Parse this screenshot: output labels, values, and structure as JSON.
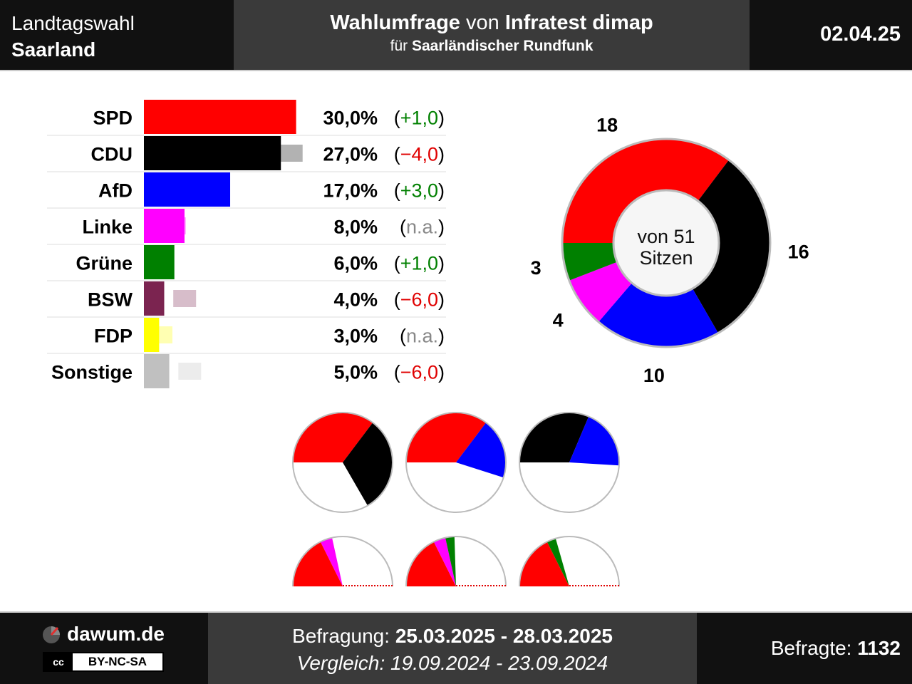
{
  "header": {
    "election_line1": "Landtagswahl",
    "election_line2": "Saarland",
    "title_part1": "Wahlumfrage",
    "title_part2": "von",
    "title_part3": "Infratest dimap",
    "subtitle_part1": "für",
    "subtitle_part2": "Saarländischer Rundfunk",
    "date": "02.04.25"
  },
  "chart_data": [
    {
      "type": "bar",
      "categories": [
        "SPD",
        "CDU",
        "AfD",
        "Linke",
        "Grüne",
        "BSW",
        "FDP",
        "Sonstige"
      ],
      "series": [
        {
          "values": [
            30.0,
            27.0,
            17.0,
            8.0,
            6.0,
            4.0,
            3.0,
            5.0
          ]
        },
        {
          "values": [
            29.0,
            31.0,
            14.0,
            null,
            5.0,
            10.0,
            null,
            11.0
          ]
        }
      ],
      "value_labels": [
        "30,0%",
        "27,0%",
        "17,0%",
        "8,0%",
        "6,0%",
        "4,0%",
        "3,0%",
        "5,0%"
      ],
      "change_labels": [
        "(+1,0)",
        "(−4,0)",
        "(+3,0)",
        "(n.a.)",
        "(+1,0)",
        "(−6,0)",
        "(n.a.)",
        "(−6,0)"
      ],
      "change_kind": [
        "up",
        "down",
        "up",
        "na",
        "up",
        "down",
        "na",
        "down"
      ],
      "colors": [
        "#ff0000",
        "#000000",
        "#0000ff",
        "#ff00ff",
        "#008000",
        "#7b2450",
        "#ffff00",
        "#c0c0c0"
      ]
    },
    {
      "type": "pie",
      "categories": [
        "SPD",
        "CDU",
        "AfD",
        "Linke",
        "Grüne"
      ],
      "values": [
        18,
        16,
        10,
        4,
        3
      ],
      "colors": [
        "#ff0000",
        "#000000",
        "#0000ff",
        "#ff00ff",
        "#008000"
      ],
      "center_line1": "von 51",
      "center_line2": "Sitzen"
    },
    {
      "type": "pie",
      "coalitions": [
        {
          "parties": [
            "SPD",
            "CDU"
          ],
          "seats": [
            18,
            16
          ],
          "colors": [
            "#ff0000",
            "#000000"
          ]
        },
        {
          "parties": [
            "SPD",
            "AfD"
          ],
          "seats": [
            18,
            10
          ],
          "colors": [
            "#ff0000",
            "#0000ff"
          ]
        },
        {
          "parties": [
            "CDU",
            "AfD"
          ],
          "seats": [
            16,
            10
          ],
          "colors": [
            "#000000",
            "#0000ff"
          ]
        },
        {
          "parties": [
            "SPD",
            "Linke"
          ],
          "seats": [
            18,
            4
          ],
          "colors": [
            "#ff0000",
            "#ff00ff"
          ]
        },
        {
          "parties": [
            "SPD",
            "Linke",
            "Grüne"
          ],
          "seats": [
            18,
            4,
            3
          ],
          "colors": [
            "#ff0000",
            "#ff00ff",
            "#008000"
          ]
        },
        {
          "parties": [
            "SPD",
            "Grüne"
          ],
          "seats": [
            18,
            3
          ],
          "colors": [
            "#ff0000",
            "#008000"
          ]
        }
      ],
      "total_seats": 51
    }
  ],
  "footer": {
    "site": "dawum.de",
    "license_icon": "cc-icon",
    "license": "BY-NC-SA",
    "survey_label": "Befragung:",
    "survey_range": "25.03.2025 - 28.03.2025",
    "compare_label": "Vergleich:",
    "compare_range": "19.09.2024 - 23.09.2024",
    "respondents_label": "Befragte:",
    "respondents": "1132"
  }
}
